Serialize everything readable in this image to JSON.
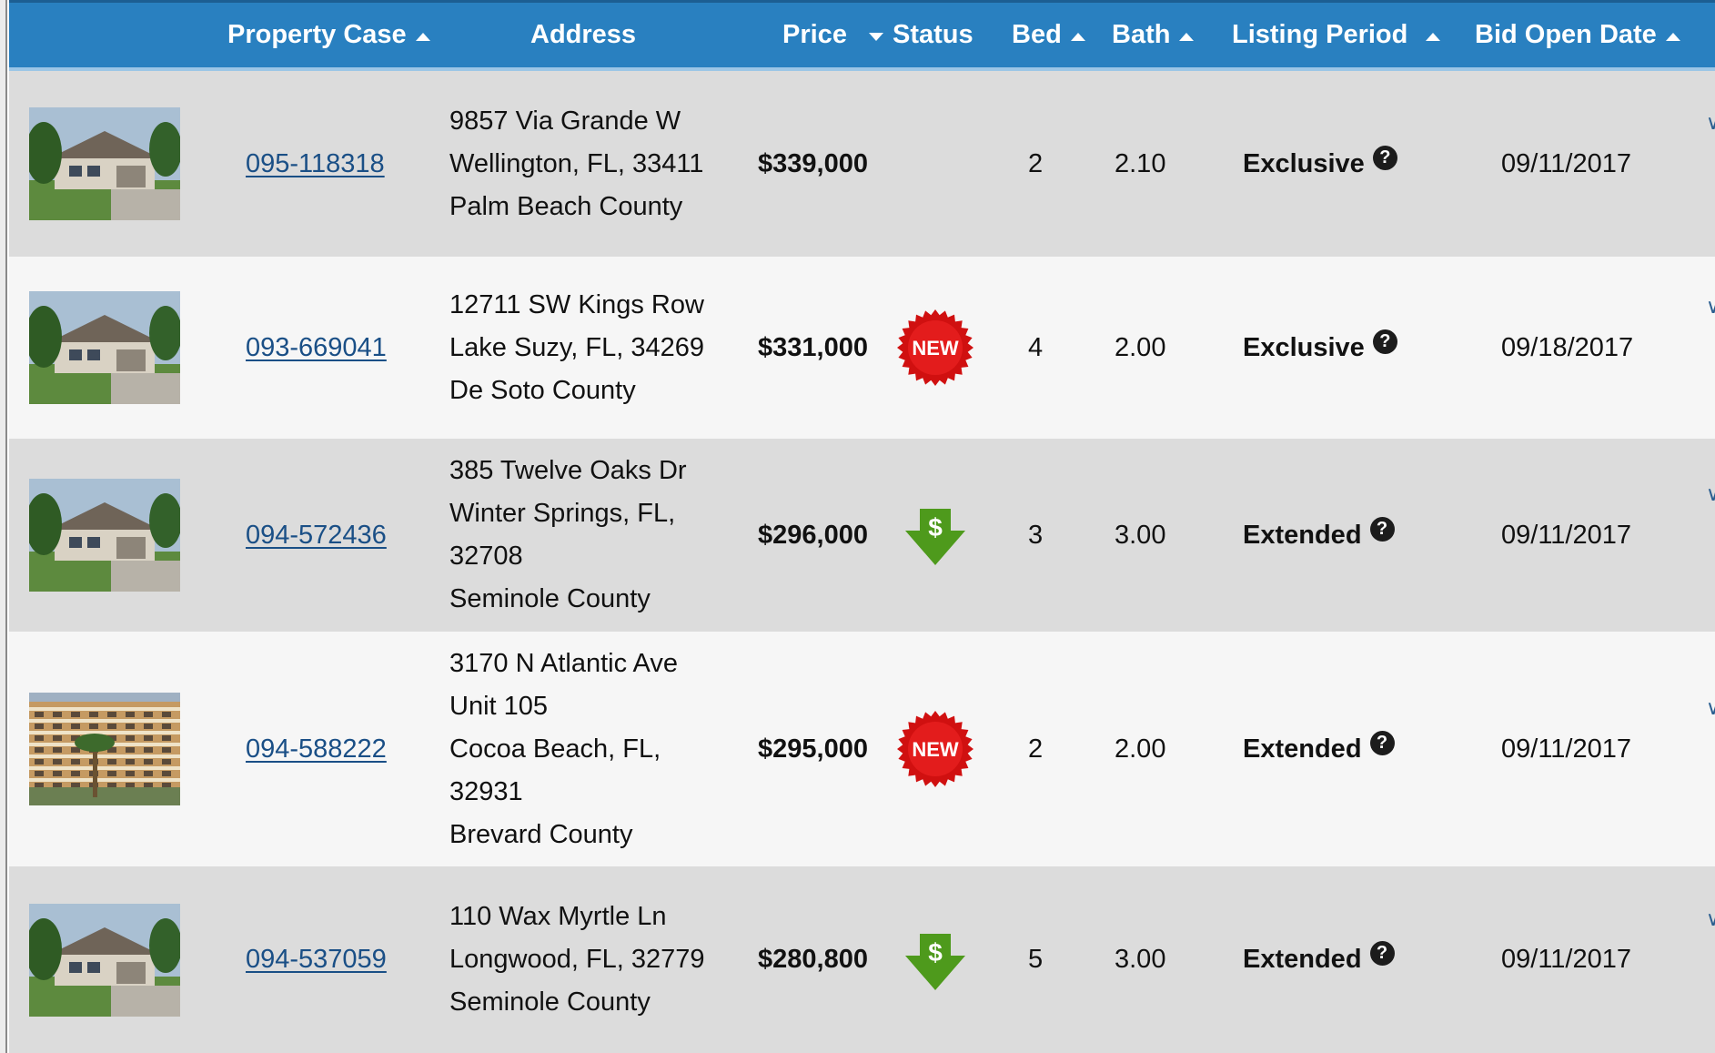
{
  "header": {
    "property_case": "Property Case",
    "address": "Address",
    "price": "Price",
    "status": "Status",
    "bed": "Bed",
    "bath": "Bath",
    "listing_period": "Listing Period",
    "bid_open_date": "Bid Open Date",
    "bg_color": "#2980c0"
  },
  "listings": [
    {
      "case": "095-118318",
      "address_lines": [
        "9857 Via Grande W",
        "Wellington, FL, 33411",
        "Palm Beach County"
      ],
      "price": "$339,000",
      "status": "",
      "bed": "2",
      "bath": "2.10",
      "listing_period": "Exclusive",
      "bid_open_date": "09/11/2017",
      "thumb_icon": "house-photo"
    },
    {
      "case": "093-669041",
      "address_lines": [
        "12711 SW Kings Row",
        "Lake Suzy, FL, 34269",
        "De Soto County"
      ],
      "price": "$331,000",
      "status": "new",
      "status_label": "NEW",
      "bed": "4",
      "bath": "2.00",
      "listing_period": "Exclusive",
      "bid_open_date": "09/18/2017",
      "thumb_icon": "house-photo"
    },
    {
      "case": "094-572436",
      "address_lines": [
        "385 Twelve Oaks Dr",
        "Winter Springs, FL,",
        "32708",
        "Seminole County"
      ],
      "price": "$296,000",
      "status": "price-drop",
      "status_label": "$",
      "bed": "3",
      "bath": "3.00",
      "listing_period": "Extended",
      "bid_open_date": "09/11/2017",
      "thumb_icon": "house-photo"
    },
    {
      "case": "094-588222",
      "address_lines": [
        "3170 N Atlantic Ave",
        "Unit 105",
        "Cocoa Beach, FL,",
        "32931",
        "Brevard County"
      ],
      "price": "$295,000",
      "status": "new",
      "status_label": "NEW",
      "bed": "2",
      "bath": "2.00",
      "listing_period": "Extended",
      "bid_open_date": "09/11/2017",
      "thumb_icon": "condo-photo"
    },
    {
      "case": "094-537059",
      "address_lines": [
        "110 Wax Myrtle Ln",
        "Longwood, FL, 32779",
        "Seminole County"
      ],
      "price": "$280,800",
      "status": "price-drop",
      "status_label": "$",
      "bed": "5",
      "bath": "3.00",
      "listing_period": "Extended",
      "bid_open_date": "09/11/2017",
      "thumb_icon": "house-photo"
    }
  ],
  "colors": {
    "link": "#1a4f86",
    "new_badge": "#d01010",
    "price_drop_arrow": "#4e9a1c",
    "row_alt": "#dcdcdc",
    "row_plain": "#f6f6f6"
  }
}
